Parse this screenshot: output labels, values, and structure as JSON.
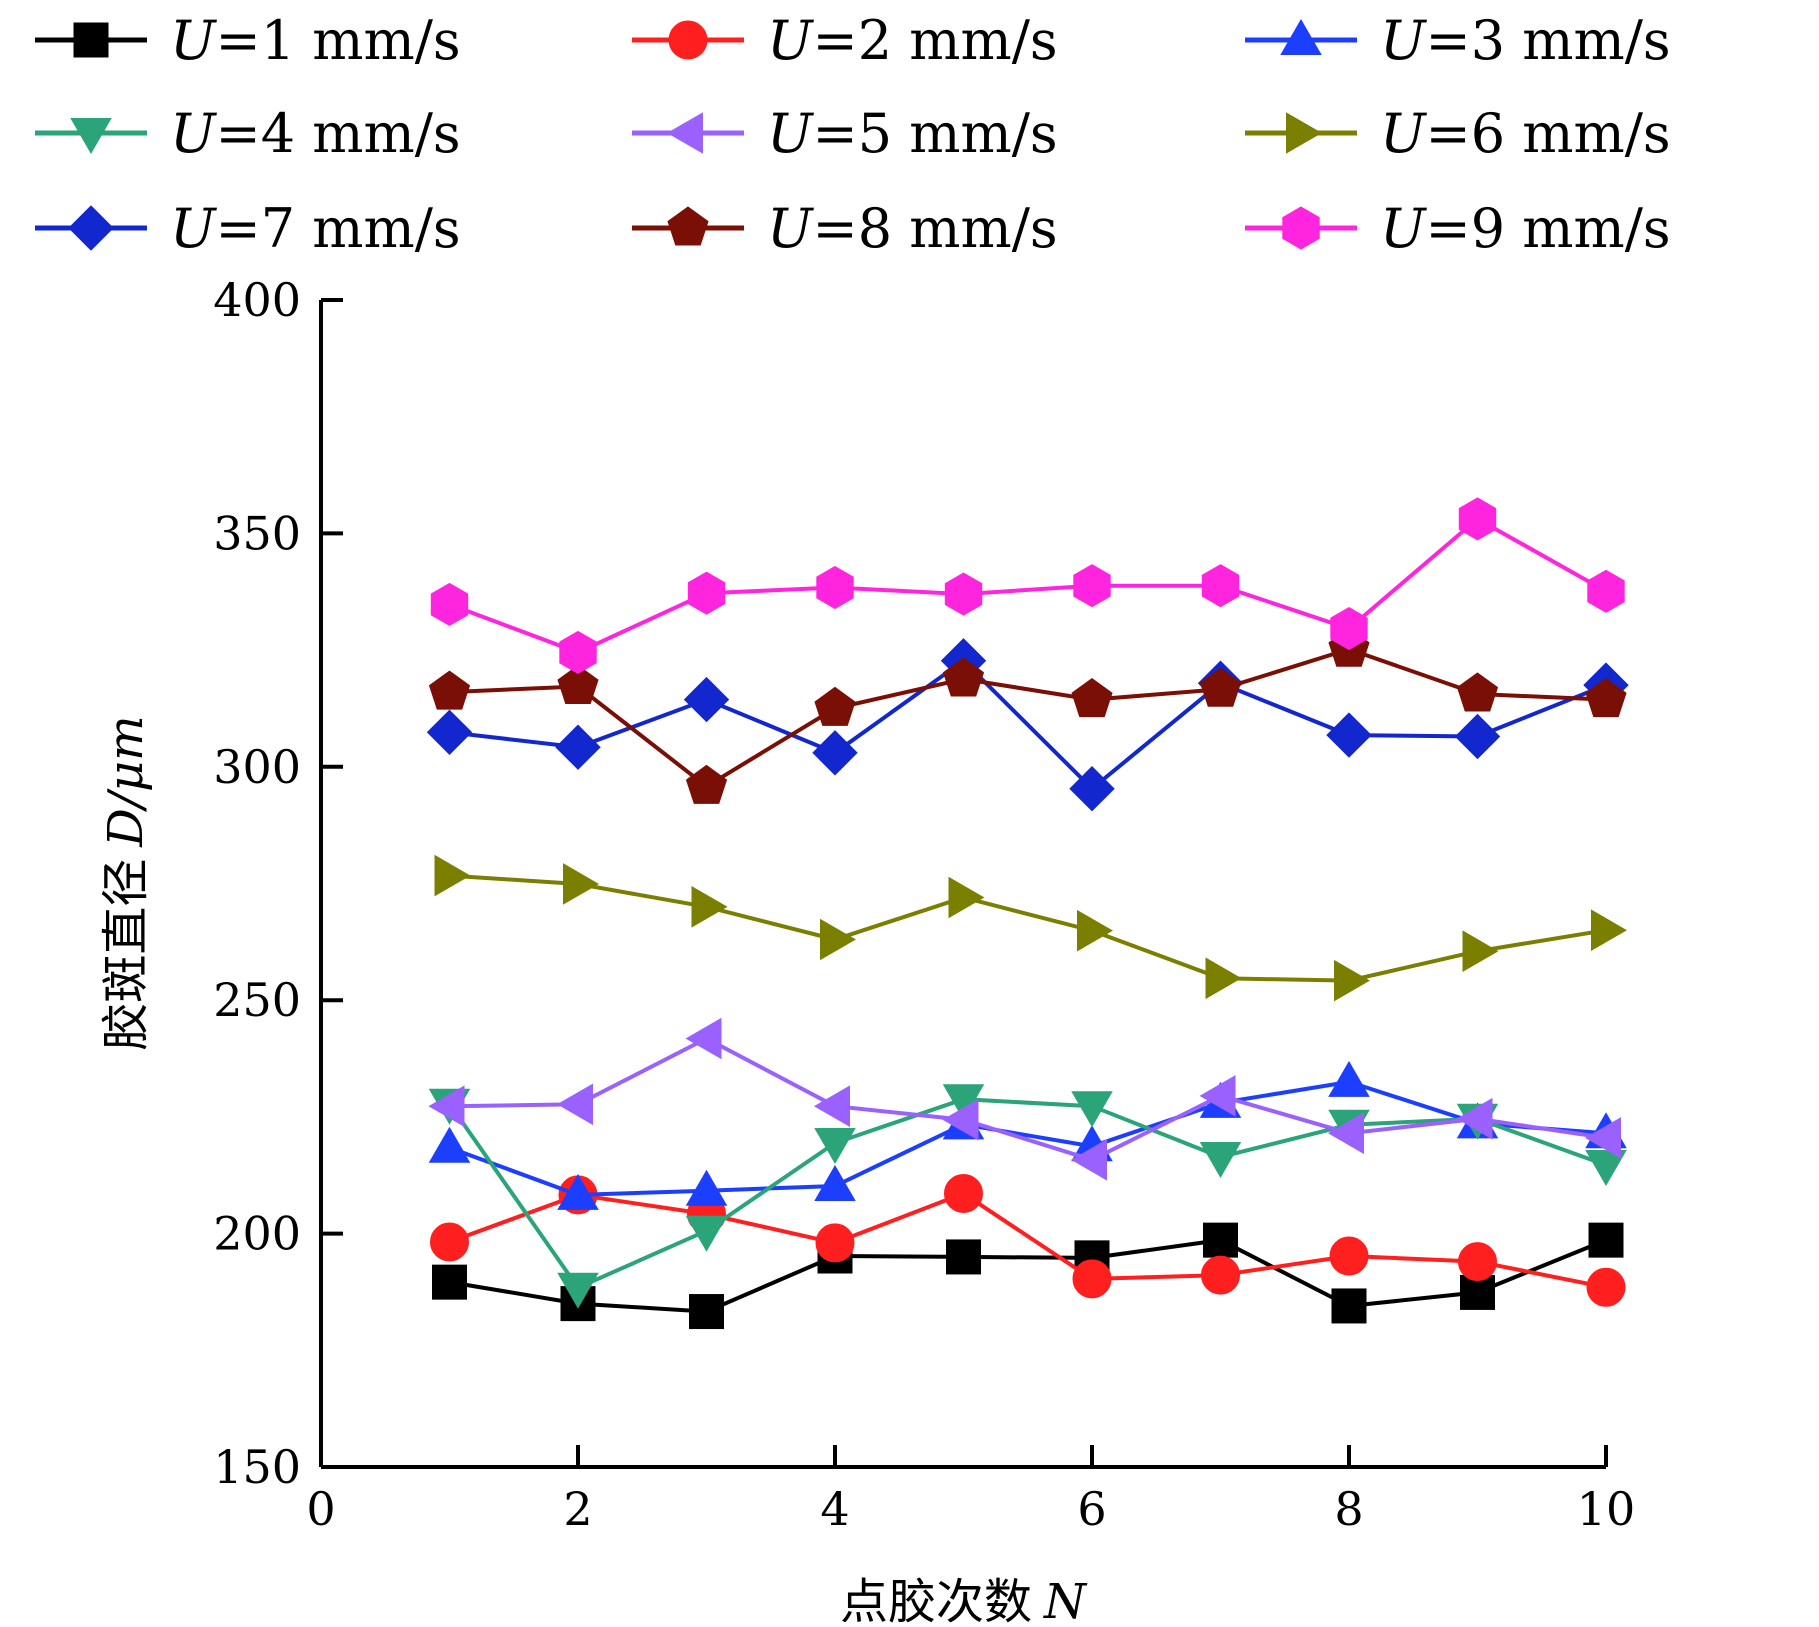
{
  "chart_data": {
    "type": "line",
    "xlabel": "点胶次数",
    "xlabel_var": "N",
    "ylabel": "胶斑直径",
    "ylabel_var": "D",
    "ylabel_unit": "/μm",
    "xlim": [
      0,
      10
    ],
    "ylim": [
      150,
      400
    ],
    "xticks": [
      0,
      2,
      4,
      6,
      8,
      10
    ],
    "yticks": [
      150,
      200,
      250,
      300,
      350,
      400
    ],
    "grid": false,
    "legend_position": "top",
    "x": [
      1,
      2,
      3,
      4,
      5,
      6,
      7,
      8,
      9,
      10
    ],
    "series": [
      {
        "name": "U=1 mm/s",
        "var": "U",
        "label_rest": "=1 mm/s",
        "color": "#000000",
        "marker": "square",
        "values": [
          189.6,
          185.0,
          183.3,
          195.2,
          195.0,
          194.8,
          198.6,
          184.5,
          187.4,
          198.6
        ]
      },
      {
        "name": "U=2 mm/s",
        "var": "U",
        "label_rest": "=2 mm/s",
        "color": "#ff1f1f",
        "marker": "circle",
        "values": [
          198.2,
          208.3,
          204.2,
          198.0,
          208.6,
          190.3,
          191.1,
          195.2,
          194.0,
          188.5
        ]
      },
      {
        "name": "U=3 mm/s",
        "var": "U",
        "label_rest": "=3 mm/s",
        "color": "#1c3fff",
        "marker": "triangle-up",
        "values": [
          218.4,
          208.3,
          209.2,
          210.2,
          223.4,
          218.7,
          228.0,
          232.5,
          223.6,
          221.5
        ]
      },
      {
        "name": "U=4 mm/s",
        "var": "U",
        "label_rest": "=4 mm/s",
        "color": "#2aa478",
        "marker": "triangle-down",
        "values": [
          227.8,
          188.4,
          200.6,
          219.4,
          228.8,
          227.3,
          216.4,
          223.3,
          224.6,
          214.7
        ]
      },
      {
        "name": "U=5 mm/s",
        "var": "U",
        "label_rest": "=5 mm/s",
        "color": "#9a61ff",
        "marker": "triangle-left",
        "values": [
          227.3,
          227.7,
          241.8,
          227.3,
          224.4,
          215.8,
          229.5,
          221.5,
          224.6,
          220.5
        ]
      },
      {
        "name": "U=6 mm/s",
        "var": "U",
        "label_rest": "=6 mm/s",
        "color": "#7a7f00",
        "marker": "triangle-right",
        "values": [
          276.7,
          274.9,
          270.0,
          263.0,
          272.0,
          264.9,
          254.7,
          254.2,
          260.5,
          265.0
        ]
      },
      {
        "name": "U=7 mm/s",
        "var": "U",
        "label_rest": "=7 mm/s",
        "color": "#1228ce",
        "marker": "diamond",
        "values": [
          307.4,
          304.2,
          314.4,
          303.0,
          322.7,
          295.3,
          317.9,
          306.8,
          306.5,
          317.5
        ]
      },
      {
        "name": "U=8 mm/s",
        "var": "U",
        "label_rest": "=8 mm/s",
        "color": "#7a0f06",
        "marker": "pentagon",
        "values": [
          316.0,
          317.2,
          295.8,
          312.5,
          318.8,
          314.4,
          316.6,
          325.2,
          315.6,
          314.4
        ]
      },
      {
        "name": "U=9 mm/s",
        "var": "U",
        "label_rest": "=9 mm/s",
        "color": "#ff24de",
        "marker": "hexagon",
        "values": [
          334.8,
          324.5,
          337.2,
          338.4,
          337.0,
          338.8,
          338.8,
          329.6,
          353.1,
          337.6
        ]
      }
    ]
  }
}
